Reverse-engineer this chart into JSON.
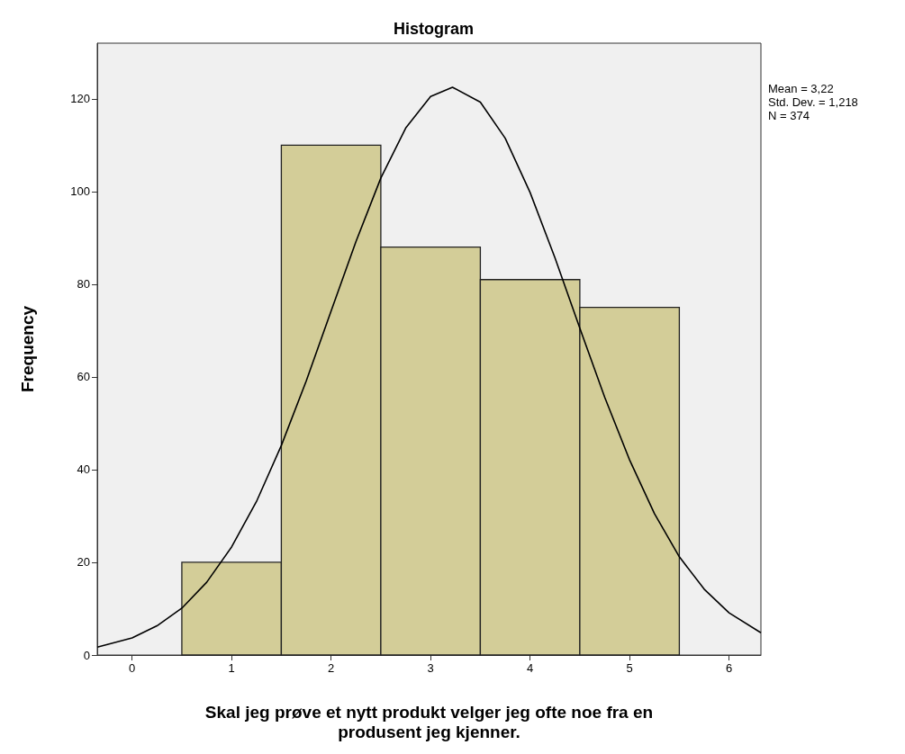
{
  "chart_data": {
    "type": "histogram",
    "title": "Histogram",
    "xlabel": "Skal jeg prøve et nytt produkt velger jeg ofte noe fra en produsent jeg kjenner.",
    "ylabel": "Frequency",
    "bins": [
      0.5,
      1.5,
      2.5,
      3.5,
      4.5,
      5.5
    ],
    "values": [
      20,
      110,
      88,
      81,
      75
    ],
    "color": "#d3cd98",
    "xlim": [
      -0.35,
      6.32
    ],
    "xticks": [
      0,
      1,
      2,
      3,
      4,
      5,
      6
    ],
    "ylim": [
      0,
      132
    ],
    "yticks": [
      0,
      20,
      40,
      60,
      80,
      100,
      120
    ],
    "annotations": [
      "Mean = 3,22",
      "Std. Dev. = 1,218",
      "N = 374"
    ],
    "series": [
      {
        "type": "line",
        "color": "#000000",
        "x": [
          -0.35,
          0,
          0.25,
          0.5,
          0.75,
          1,
          1.25,
          1.5,
          1.75,
          2,
          2.25,
          2.5,
          2.75,
          3,
          3.22,
          3.5,
          3.75,
          4,
          4.25,
          4.5,
          4.75,
          5,
          5.25,
          5.5,
          5.75,
          6,
          6.32
        ],
        "values": [
          1.7,
          3.7,
          6.3,
          10.1,
          15.7,
          23.3,
          33.1,
          45.2,
          59.1,
          74.2,
          89.2,
          102.9,
          113.7,
          120.5,
          122.5,
          119.3,
          111.5,
          99.8,
          85.7,
          70.5,
          55.6,
          42.1,
          30.5,
          21.2,
          14.2,
          9.1,
          4.8
        ]
      }
    ]
  }
}
